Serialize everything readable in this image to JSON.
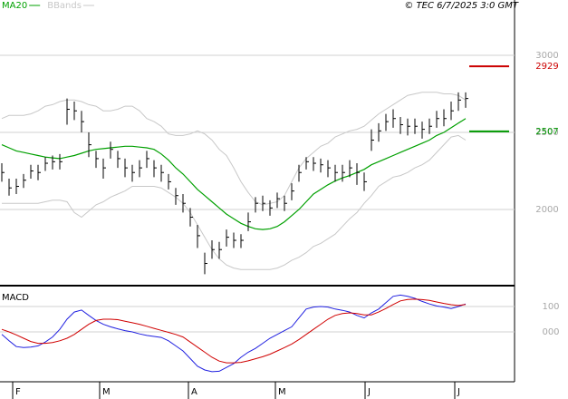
{
  "chart_data": [
    {
      "type": "ohlc",
      "credit": "© TEC 6/7/2025 3:0 GMT",
      "x": [
        0,
        1,
        2,
        3,
        4,
        5,
        6,
        7,
        8,
        9,
        10,
        11,
        12,
        13,
        14,
        15,
        16,
        17,
        18,
        19,
        20,
        21,
        22,
        23,
        24,
        25,
        26,
        27,
        28,
        29,
        30,
        31,
        32,
        33,
        34,
        35,
        36,
        37,
        38,
        39,
        40,
        41,
        42,
        43,
        44,
        45,
        46,
        47,
        48,
        49,
        50,
        51,
        52,
        53,
        54,
        55,
        56,
        57,
        58,
        59,
        60,
        61,
        62,
        63,
        64
      ],
      "high": [
        2300,
        2200,
        2200,
        2230,
        2290,
        2290,
        2340,
        2350,
        2360,
        2720,
        2700,
        2640,
        2500,
        2380,
        2330,
        2440,
        2380,
        2330,
        2290,
        2320,
        2380,
        2320,
        2290,
        2230,
        2140,
        2100,
        2010,
        1900,
        1720,
        1800,
        1790,
        1870,
        1850,
        1840,
        1980,
        2080,
        2090,
        2060,
        2110,
        2090,
        2170,
        2290,
        2340,
        2340,
        2330,
        2320,
        2290,
        2290,
        2320,
        2300,
        2240,
        2520,
        2560,
        2620,
        2650,
        2600,
        2590,
        2590,
        2570,
        2590,
        2640,
        2650,
        2700,
        2760,
        2760
      ],
      "low": [
        2180,
        2090,
        2100,
        2140,
        2200,
        2190,
        2250,
        2260,
        2260,
        2550,
        2580,
        2500,
        2340,
        2270,
        2200,
        2330,
        2270,
        2210,
        2180,
        2210,
        2270,
        2210,
        2180,
        2130,
        2030,
        1980,
        1890,
        1750,
        1580,
        1680,
        1680,
        1760,
        1750,
        1750,
        1860,
        1980,
        1990,
        1960,
        2010,
        1990,
        2060,
        2180,
        2260,
        2250,
        2240,
        2210,
        2180,
        2180,
        2210,
        2160,
        2120,
        2380,
        2440,
        2510,
        2530,
        2490,
        2480,
        2490,
        2460,
        2490,
        2530,
        2540,
        2580,
        2640,
        2660
      ],
      "close": [
        2240,
        2140,
        2150,
        2190,
        2250,
        2240,
        2300,
        2310,
        2310,
        2650,
        2640,
        2570,
        2420,
        2330,
        2270,
        2390,
        2330,
        2270,
        2240,
        2270,
        2330,
        2270,
        2240,
        2180,
        2090,
        2040,
        1950,
        1830,
        1650,
        1740,
        1740,
        1820,
        1800,
        1800,
        1920,
        2040,
        2040,
        2010,
        2070,
        2040,
        2120,
        2240,
        2310,
        2300,
        2290,
        2270,
        2240,
        2240,
        2270,
        2240,
        2180,
        2450,
        2510,
        2570,
        2590,
        2550,
        2540,
        2540,
        2520,
        2540,
        2590,
        2590,
        2640,
        2710,
        2720
      ],
      "bar_color": "#000000",
      "series": [
        {
          "name": "MA20",
          "color": "#00a000",
          "values": [
            2420,
            2400,
            2380,
            2370,
            2360,
            2350,
            2340,
            2335,
            2330,
            2340,
            2350,
            2365,
            2380,
            2390,
            2395,
            2400,
            2405,
            2410,
            2410,
            2405,
            2400,
            2390,
            2360,
            2320,
            2270,
            2230,
            2180,
            2130,
            2090,
            2050,
            2010,
            1970,
            1940,
            1910,
            1890,
            1875,
            1870,
            1875,
            1890,
            1920,
            1960,
            2000,
            2050,
            2100,
            2130,
            2160,
            2185,
            2205,
            2220,
            2240,
            2260,
            2290,
            2310,
            2330,
            2350,
            2370,
            2390,
            2410,
            2430,
            2450,
            2480,
            2500,
            2530,
            2560,
            2590
          ]
        },
        {
          "name": "BBands",
          "color": "#c8c8c8",
          "upper": [
            2590,
            2610,
            2610,
            2610,
            2620,
            2640,
            2670,
            2680,
            2700,
            2710,
            2710,
            2700,
            2680,
            2670,
            2640,
            2640,
            2650,
            2670,
            2670,
            2640,
            2590,
            2570,
            2540,
            2490,
            2480,
            2480,
            2490,
            2510,
            2490,
            2450,
            2390,
            2350,
            2270,
            2180,
            2110,
            2050,
            2030,
            2040,
            2050,
            2090,
            2180,
            2270,
            2330,
            2370,
            2410,
            2430,
            2470,
            2490,
            2510,
            2520,
            2540,
            2580,
            2620,
            2650,
            2680,
            2710,
            2740,
            2750,
            2760,
            2760,
            2760,
            2750,
            2750,
            2740,
            2710
          ],
          "lower": [
            2040,
            2040,
            2040,
            2040,
            2040,
            2040,
            2050,
            2060,
            2060,
            2050,
            1980,
            1950,
            1990,
            2030,
            2050,
            2080,
            2100,
            2120,
            2150,
            2150,
            2150,
            2150,
            2140,
            2110,
            2080,
            2040,
            1980,
            1900,
            1820,
            1740,
            1680,
            1640,
            1620,
            1610,
            1610,
            1610,
            1610,
            1610,
            1620,
            1640,
            1670,
            1690,
            1720,
            1760,
            1780,
            1810,
            1840,
            1890,
            1940,
            1980,
            2040,
            2090,
            2150,
            2180,
            2210,
            2220,
            2240,
            2270,
            2290,
            2320,
            2370,
            2420,
            2470,
            2480,
            2450
          ]
        }
      ],
      "markers": [
        {
          "value": 2929,
          "color": "#cc0000"
        },
        {
          "value": 2507,
          "color": "#009900"
        }
      ],
      "xlim": [
        -0.25,
        70.75
      ],
      "ylim": [
        1506,
        3359
      ],
      "yticks": [
        2000,
        2500,
        3000
      ],
      "grid": true
    },
    {
      "type": "line",
      "title": "MACD",
      "series": [
        {
          "color": "#2020e0",
          "values": [
            -10,
            -35,
            -58,
            -62,
            -60,
            -55,
            -40,
            -20,
            10,
            50,
            78,
            86,
            65,
            45,
            30,
            20,
            12,
            5,
            0,
            -8,
            -14,
            -18,
            -22,
            -35,
            -55,
            -75,
            -105,
            -135,
            -150,
            -157,
            -155,
            -140,
            -125,
            -100,
            -80,
            -65,
            -45,
            -25,
            -10,
            5,
            20,
            55,
            90,
            98,
            100,
            98,
            90,
            85,
            78,
            65,
            55,
            75,
            90,
            115,
            140,
            145,
            140,
            132,
            120,
            110,
            102,
            98,
            92,
            100,
            110
          ]
        },
        {
          "color": "#d00000",
          "values": [
            10,
            0,
            -12,
            -25,
            -38,
            -45,
            -45,
            -42,
            -35,
            -25,
            -10,
            10,
            30,
            45,
            50,
            50,
            48,
            42,
            36,
            30,
            22,
            14,
            6,
            -2,
            -10,
            -20,
            -40,
            -60,
            -80,
            -100,
            -115,
            -122,
            -122,
            -120,
            -114,
            -106,
            -98,
            -88,
            -75,
            -62,
            -48,
            -30,
            -10,
            10,
            30,
            50,
            65,
            72,
            75,
            72,
            67,
            67,
            78,
            92,
            108,
            122,
            128,
            129,
            127,
            124,
            118,
            112,
            107,
            104,
            108
          ]
        }
      ],
      "ylim": [
        -193,
        175
      ],
      "yticks": [
        {
          "value": 0,
          "label": "000"
        },
        100
      ],
      "grid": true,
      "xticks": [
        {
          "value": 1.5,
          "label": "F"
        },
        {
          "value": 13.5,
          "label": "M"
        },
        {
          "value": 25.75,
          "label": "A"
        },
        {
          "value": 37.75,
          "label": "M"
        },
        {
          "value": 50.125,
          "label": "J"
        },
        {
          "value": 62.5,
          "label": "J"
        }
      ]
    }
  ]
}
